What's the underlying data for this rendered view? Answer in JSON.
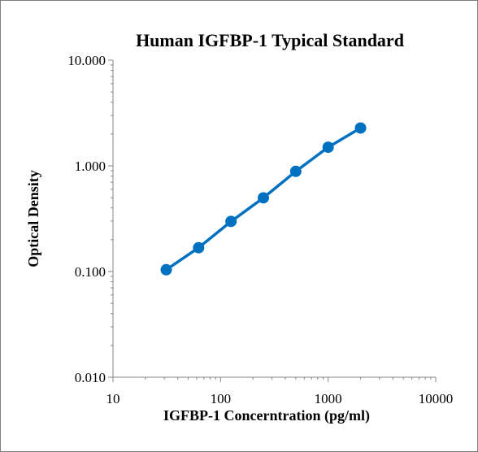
{
  "chart_data": {
    "type": "scatter",
    "title": "Human IGFBP-1 Typical Standard",
    "xlabel": "IGFBP-1 Concerntration (pg/ml)",
    "ylabel": "Optical Density",
    "x_scale": "log",
    "y_scale": "log",
    "xlim": [
      10,
      10000
    ],
    "ylim": [
      0.01,
      10
    ],
    "x_tick_labels": [
      "10",
      "100",
      "1000",
      "10000"
    ],
    "y_tick_labels": [
      "10.000",
      "1.000",
      "0.100",
      "0.010"
    ],
    "grid": false,
    "legend": "none",
    "series": [
      {
        "color": "#0070c0",
        "line": true,
        "marker": "circle",
        "x": [
          31.25,
          62.5,
          125,
          250,
          500,
          1000,
          2000
        ],
        "y": [
          0.104,
          0.168,
          0.298,
          0.498,
          0.887,
          1.5,
          2.28
        ]
      }
    ]
  }
}
